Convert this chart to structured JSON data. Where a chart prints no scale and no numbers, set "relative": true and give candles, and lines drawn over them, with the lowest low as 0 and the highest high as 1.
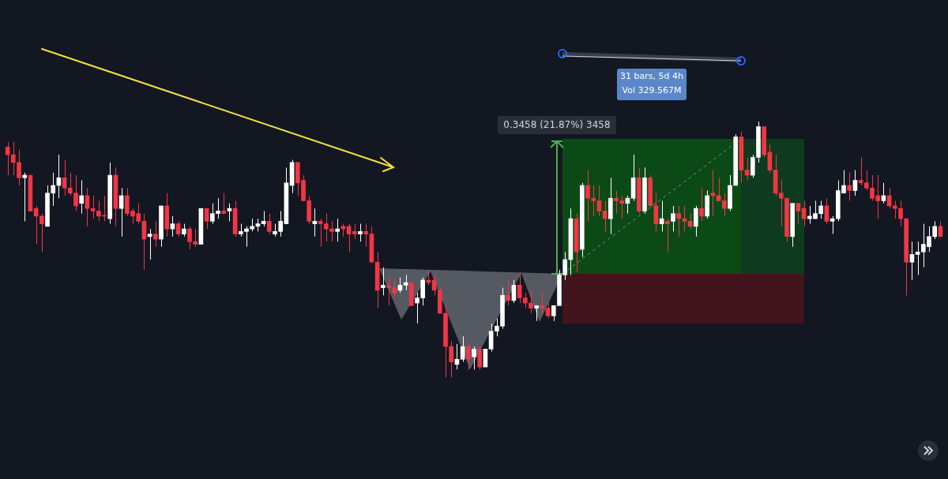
{
  "chart_data": {
    "type": "candlestick",
    "relative": true,
    "annotations": [
      "0.3458 (21.87%) 3458",
      "31 bars, 5d 4h",
      "Vol 329.567M"
    ],
    "categories": [
      null,
      null,
      null,
      null,
      null,
      null,
      null,
      null,
      null,
      null,
      null,
      null,
      null,
      null,
      null,
      null,
      null,
      null,
      null,
      null,
      null,
      null,
      null,
      null,
      null,
      null,
      null,
      null,
      null,
      null,
      null,
      null,
      null,
      null,
      null,
      null,
      null,
      null,
      null,
      null,
      null,
      null,
      null,
      null,
      null,
      null,
      null,
      null,
      null,
      null,
      null,
      null,
      null,
      null,
      null,
      null,
      null,
      null,
      null,
      null,
      null,
      null,
      null,
      null,
      null,
      null,
      null,
      null,
      null,
      null,
      null,
      null,
      null,
      null,
      null,
      null,
      null,
      null,
      null,
      null,
      null,
      null,
      null,
      null,
      null,
      null,
      null,
      null,
      null,
      null,
      null,
      null,
      null,
      null,
      null,
      null,
      null,
      null,
      null,
      null,
      null,
      null,
      null,
      null,
      null,
      null,
      null,
      null,
      null,
      null,
      null,
      null,
      null,
      null,
      null,
      null,
      null,
      null,
      null,
      null,
      null,
      null,
      null,
      null,
      null,
      null,
      null,
      null,
      null,
      null,
      null,
      null,
      null,
      null,
      null,
      null,
      null,
      null,
      null,
      null,
      null,
      null,
      null,
      null,
      null,
      null,
      null,
      null,
      null,
      null,
      null,
      null,
      null,
      null,
      null,
      null,
      null,
      null,
      null,
      null,
      null,
      null,
      null,
      null,
      null
    ],
    "ohlc": [
      [
        0.9,
        0.92,
        0.79,
        0.87
      ],
      [
        0.87,
        0.92,
        0.79,
        0.84
      ],
      [
        0.84,
        0.89,
        0.75,
        0.78
      ],
      [
        0.78,
        0.8,
        0.61,
        0.79
      ],
      [
        0.79,
        0.79,
        0.65,
        0.65
      ],
      [
        0.66,
        0.67,
        0.52,
        0.63
      ],
      [
        0.63,
        0.64,
        0.49,
        0.6
      ],
      [
        0.59,
        0.75,
        0.59,
        0.72
      ],
      [
        0.72,
        0.8,
        0.67,
        0.75
      ],
      [
        0.75,
        0.87,
        0.7,
        0.78
      ],
      [
        0.78,
        0.85,
        0.71,
        0.74
      ],
      [
        0.74,
        0.8,
        0.71,
        0.72
      ],
      [
        0.72,
        0.79,
        0.65,
        0.67
      ],
      [
        0.68,
        0.77,
        0.64,
        0.71
      ],
      [
        0.71,
        0.74,
        0.59,
        0.66
      ],
      [
        0.66,
        0.71,
        0.62,
        0.65
      ],
      [
        0.65,
        0.69,
        0.61,
        0.63
      ],
      [
        0.63,
        0.71,
        0.61,
        0.63
      ],
      [
        0.62,
        0.84,
        0.6,
        0.79
      ],
      [
        0.79,
        0.82,
        0.59,
        0.66
      ],
      [
        0.66,
        0.74,
        0.55,
        0.71
      ],
      [
        0.71,
        0.74,
        0.63,
        0.64
      ],
      [
        0.65,
        0.66,
        0.6,
        0.63
      ],
      [
        0.64,
        0.68,
        0.6,
        0.61
      ],
      [
        0.61,
        0.64,
        0.42,
        0.54
      ],
      [
        0.55,
        0.58,
        0.46,
        0.56
      ],
      [
        0.56,
        0.61,
        0.51,
        0.54
      ],
      [
        0.54,
        0.67,
        0.51,
        0.67
      ],
      [
        0.67,
        0.72,
        0.55,
        0.58
      ],
      [
        0.58,
        0.63,
        0.55,
        0.6
      ],
      [
        0.6,
        0.61,
        0.55,
        0.56
      ],
      [
        0.56,
        0.6,
        0.55,
        0.58
      ],
      [
        0.58,
        0.59,
        0.5,
        0.53
      ],
      [
        0.53,
        0.58,
        0.51,
        0.52
      ],
      [
        0.52,
        0.66,
        0.52,
        0.66
      ],
      [
        0.66,
        0.66,
        0.58,
        0.61
      ],
      [
        0.61,
        0.68,
        0.6,
        0.64
      ],
      [
        0.64,
        0.7,
        0.62,
        0.65
      ],
      [
        0.65,
        0.72,
        0.64,
        0.64
      ],
      [
        0.65,
        0.68,
        0.61,
        0.66
      ],
      [
        0.66,
        0.69,
        0.55,
        0.56
      ],
      [
        0.56,
        0.6,
        0.55,
        0.57
      ],
      [
        0.57,
        0.59,
        0.51,
        0.58
      ],
      [
        0.58,
        0.62,
        0.57,
        0.59
      ],
      [
        0.59,
        0.62,
        0.57,
        0.6
      ],
      [
        0.6,
        0.65,
        0.59,
        0.61
      ],
      [
        0.61,
        0.64,
        0.56,
        0.57
      ],
      [
        0.56,
        0.6,
        0.55,
        0.57
      ],
      [
        0.57,
        0.65,
        0.55,
        0.61
      ],
      [
        0.6,
        0.82,
        0.6,
        0.76
      ],
      [
        0.75,
        0.85,
        0.72,
        0.84
      ],
      [
        0.84,
        0.84,
        0.71,
        0.76
      ],
      [
        0.77,
        0.79,
        0.69,
        0.69
      ],
      [
        0.69,
        0.71,
        0.6,
        0.61
      ],
      [
        0.6,
        0.66,
        0.55,
        0.61
      ],
      [
        0.61,
        0.62,
        0.51,
        0.6
      ],
      [
        0.6,
        0.64,
        0.53,
        0.58
      ],
      [
        0.58,
        0.61,
        0.53,
        0.57
      ],
      [
        0.57,
        0.62,
        0.53,
        0.58
      ],
      [
        0.59,
        0.6,
        0.55,
        0.58
      ],
      [
        0.59,
        0.6,
        0.49,
        0.56
      ],
      [
        0.57,
        0.6,
        0.54,
        0.56
      ],
      [
        0.56,
        0.6,
        0.53,
        0.57
      ],
      [
        0.57,
        0.6,
        0.51,
        0.56
      ],
      [
        0.56,
        0.59,
        0.45,
        0.45
      ],
      [
        0.45,
        0.49,
        0.27,
        0.34
      ],
      [
        0.35,
        0.43,
        0.32,
        0.36
      ],
      [
        0.36,
        0.39,
        0.28,
        0.35
      ],
      [
        0.35,
        0.39,
        0.31,
        0.33
      ],
      [
        0.34,
        0.39,
        0.33,
        0.36
      ],
      [
        0.36,
        0.4,
        0.34,
        0.37
      ],
      [
        0.37,
        0.37,
        0.28,
        0.28
      ],
      [
        0.29,
        0.33,
        0.21,
        0.31
      ],
      [
        0.31,
        0.39,
        0.28,
        0.38
      ],
      [
        0.38,
        0.42,
        0.36,
        0.37
      ],
      [
        0.38,
        0.4,
        0.32,
        0.34
      ],
      [
        0.34,
        0.35,
        0.25,
        0.25
      ],
      [
        0.25,
        0.28,
        0.0,
        0.12
      ],
      [
        0.12,
        0.14,
        0.0,
        0.06
      ],
      [
        0.05,
        0.13,
        0.03,
        0.07
      ],
      [
        0.07,
        0.16,
        0.06,
        0.12
      ],
      [
        0.12,
        0.13,
        0.03,
        0.07
      ],
      [
        0.08,
        0.12,
        0.03,
        0.11
      ],
      [
        0.11,
        0.12,
        0.03,
        0.04
      ],
      [
        0.04,
        0.11,
        0.04,
        0.11
      ],
      [
        0.11,
        0.21,
        0.1,
        0.18
      ],
      [
        0.18,
        0.23,
        0.16,
        0.2
      ],
      [
        0.2,
        0.35,
        0.19,
        0.32
      ],
      [
        0.32,
        0.38,
        0.28,
        0.3
      ],
      [
        0.3,
        0.38,
        0.29,
        0.36
      ],
      [
        0.36,
        0.41,
        0.29,
        0.31
      ],
      [
        0.31,
        0.33,
        0.27,
        0.29
      ],
      [
        0.29,
        0.34,
        0.25,
        0.27
      ],
      [
        0.27,
        0.28,
        0.22,
        0.28
      ],
      [
        0.28,
        0.33,
        0.25,
        0.27
      ],
      [
        0.27,
        0.29,
        0.23,
        0.24
      ],
      [
        0.24,
        0.28,
        0.22,
        0.28
      ],
      [
        0.28,
        0.42,
        0.28,
        0.4
      ],
      [
        0.4,
        0.49,
        0.38,
        0.46
      ],
      [
        0.46,
        0.66,
        0.4,
        0.62
      ],
      [
        0.62,
        0.64,
        0.41,
        0.49
      ],
      [
        0.5,
        0.76,
        0.47,
        0.75
      ],
      [
        0.75,
        0.81,
        0.61,
        0.7
      ],
      [
        0.7,
        0.75,
        0.63,
        0.69
      ],
      [
        0.69,
        0.75,
        0.63,
        0.65
      ],
      [
        0.65,
        0.69,
        0.57,
        0.62
      ],
      [
        0.62,
        0.78,
        0.56,
        0.7
      ],
      [
        0.7,
        0.73,
        0.64,
        0.69
      ],
      [
        0.69,
        0.71,
        0.62,
        0.68
      ],
      [
        0.68,
        0.71,
        0.64,
        0.7
      ],
      [
        0.7,
        0.87,
        0.69,
        0.78
      ],
      [
        0.78,
        0.82,
        0.64,
        0.65
      ],
      [
        0.65,
        0.82,
        0.64,
        0.78
      ],
      [
        0.78,
        0.79,
        0.67,
        0.67
      ],
      [
        0.67,
        0.72,
        0.57,
        0.6
      ],
      [
        0.6,
        0.69,
        0.57,
        0.62
      ],
      [
        0.61,
        0.62,
        0.49,
        0.6
      ],
      [
        0.61,
        0.67,
        0.57,
        0.64
      ],
      [
        0.64,
        0.67,
        0.55,
        0.62
      ],
      [
        0.62,
        0.67,
        0.57,
        0.61
      ],
      [
        0.61,
        0.64,
        0.58,
        0.59
      ],
      [
        0.59,
        0.67,
        0.55,
        0.66
      ],
      [
        0.66,
        0.74,
        0.61,
        0.63
      ],
      [
        0.63,
        0.73,
        0.62,
        0.71
      ],
      [
        0.72,
        0.81,
        0.63,
        0.71
      ],
      [
        0.71,
        0.78,
        0.69,
        0.69
      ],
      [
        0.69,
        0.72,
        0.63,
        0.66
      ],
      [
        0.66,
        0.79,
        0.65,
        0.75
      ],
      [
        0.75,
        0.95,
        0.75,
        0.94
      ],
      [
        0.94,
        0.96,
        0.76,
        0.81
      ],
      [
        0.81,
        0.86,
        0.77,
        0.79
      ],
      [
        0.79,
        0.87,
        0.78,
        0.86
      ],
      [
        0.86,
        1.0,
        0.84,
        0.98
      ],
      [
        0.98,
        0.98,
        0.86,
        0.87
      ],
      [
        0.88,
        0.91,
        0.8,
        0.81
      ],
      [
        0.81,
        0.87,
        0.71,
        0.72
      ],
      [
        0.72,
        0.77,
        0.59,
        0.7
      ],
      [
        0.7,
        0.7,
        0.53,
        0.55
      ],
      [
        0.55,
        0.68,
        0.51,
        0.68
      ],
      [
        0.68,
        0.68,
        0.6,
        0.65
      ],
      [
        0.66,
        0.69,
        0.59,
        0.62
      ],
      [
        0.62,
        0.67,
        0.6,
        0.63
      ],
      [
        0.62,
        0.69,
        0.62,
        0.64
      ],
      [
        0.64,
        0.69,
        0.62,
        0.67
      ],
      [
        0.67,
        0.7,
        0.6,
        0.61
      ],
      [
        0.61,
        0.63,
        0.56,
        0.62
      ],
      [
        0.62,
        0.77,
        0.61,
        0.73
      ],
      [
        0.72,
        0.81,
        0.72,
        0.75
      ],
      [
        0.75,
        0.8,
        0.69,
        0.73
      ],
      [
        0.73,
        0.81,
        0.71,
        0.77
      ],
      [
        0.77,
        0.86,
        0.75,
        0.76
      ],
      [
        0.76,
        0.81,
        0.73,
        0.74
      ],
      [
        0.74,
        0.79,
        0.69,
        0.7
      ],
      [
        0.71,
        0.79,
        0.62,
        0.69
      ],
      [
        0.69,
        0.76,
        0.68,
        0.71
      ],
      [
        0.71,
        0.74,
        0.66,
        0.67
      ],
      [
        0.67,
        0.69,
        0.62,
        0.66
      ],
      [
        0.66,
        0.69,
        0.59,
        0.62
      ],
      [
        0.62,
        0.62,
        0.32,
        0.45
      ],
      [
        0.45,
        0.53,
        0.38,
        0.48
      ],
      [
        0.48,
        0.53,
        0.4,
        0.49
      ],
      [
        0.49,
        0.6,
        0.43,
        0.52
      ],
      [
        0.51,
        0.59,
        0.49,
        0.55
      ],
      [
        0.55,
        0.61,
        0.54,
        0.59
      ],
      [
        0.59,
        0.61,
        0.55,
        0.55
      ]
    ],
    "colors": [
      "#f23645",
      "#f23645",
      "#f23645",
      "#ffffff",
      "#f23645",
      "#f23645",
      "#f23645",
      "#ffffff",
      "#ffffff",
      "#ffffff",
      "#f23645",
      "#f23645",
      "#f23645",
      "#ffffff",
      "#f23645",
      "#f23645",
      "#f23645",
      "#f23645",
      "#ffffff",
      "#f23645",
      "#ffffff",
      "#f23645",
      "#f23645",
      "#f23645",
      "#f23645",
      "#ffffff",
      "#f23645",
      "#ffffff",
      "#f23645",
      "#ffffff",
      "#f23645",
      "#ffffff",
      "#f23645",
      "#f23645",
      "#ffffff",
      "#f23645",
      "#ffffff",
      "#ffffff",
      "#f23645",
      "#ffffff",
      "#f23645",
      "#ffffff",
      "#ffffff",
      "#ffffff",
      "#ffffff",
      "#ffffff",
      "#f23645",
      "#ffffff",
      "#ffffff",
      "#ffffff",
      "#ffffff",
      "#f23645",
      "#f23645",
      "#f23645",
      "#ffffff",
      "#f23645",
      "#f23645",
      "#f23645",
      "#ffffff",
      "#f23645",
      "#f23645",
      "#f23645",
      "#ffffff",
      "#f23645",
      "#f23645",
      "#f23645",
      "#ffffff",
      "#f23645",
      "#f23645",
      "#ffffff",
      "#ffffff",
      "#f23645",
      "#ffffff",
      "#ffffff",
      "#f23645",
      "#f23645",
      "#f23645",
      "#f23645",
      "#f23645",
      "#ffffff",
      "#ffffff",
      "#f23645",
      "#ffffff",
      "#f23645",
      "#ffffff",
      "#ffffff",
      "#ffffff",
      "#ffffff",
      "#f23645",
      "#ffffff",
      "#f23645",
      "#f23645",
      "#f23645",
      "#ffffff",
      "#f23645",
      "#f23645",
      "#ffffff",
      "#ffffff",
      "#ffffff",
      "#ffffff",
      "#f23645",
      "#ffffff",
      "#f23645",
      "#f23645",
      "#f23645",
      "#f23645",
      "#ffffff",
      "#f23645",
      "#f23645",
      "#ffffff",
      "#ffffff",
      "#f23645",
      "#ffffff",
      "#f23645",
      "#f23645",
      "#ffffff",
      "#f23645",
      "#ffffff",
      "#f23645",
      "#f23645",
      "#f23645",
      "#ffffff",
      "#f23645",
      "#ffffff",
      "#f23645",
      "#f23645",
      "#f23645",
      "#ffffff",
      "#ffffff",
      "#f23645",
      "#f23645",
      "#ffffff",
      "#ffffff",
      "#f23645",
      "#f23645",
      "#f23645",
      "#f23645",
      "#f23645",
      "#ffffff",
      "#f23645",
      "#f23645",
      "#ffffff",
      "#ffffff",
      "#ffffff",
      "#f23645",
      "#ffffff",
      "#ffffff",
      "#ffffff",
      "#f23645",
      "#ffffff",
      "#f23645",
      "#f23645",
      "#f23645",
      "#f23645",
      "#ffffff",
      "#f23645",
      "#f23645",
      "#f23645",
      "#f23645",
      "#ffffff",
      "#ffffff",
      "#ffffff",
      "#ffffff",
      "#ffffff",
      "#f23645"
    ]
  }
}
